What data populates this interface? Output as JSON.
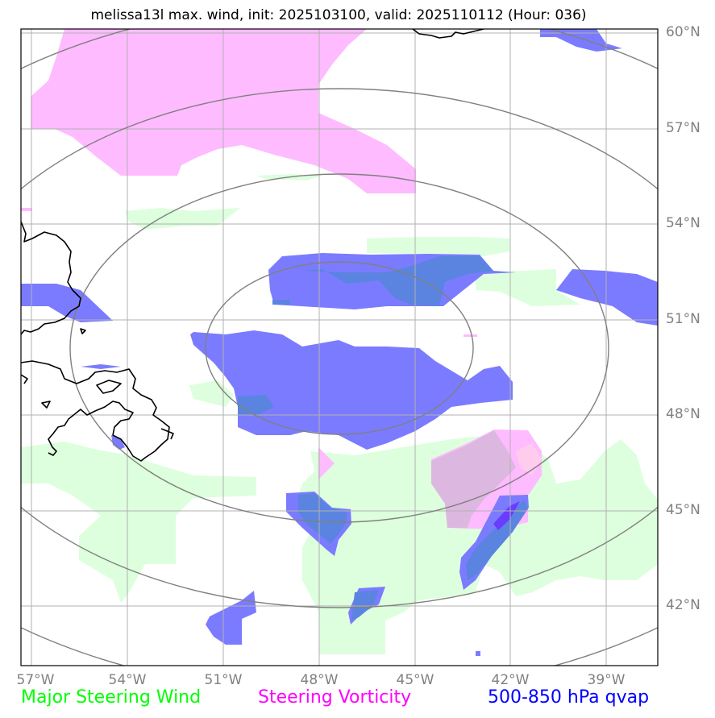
{
  "title": "melissa13l max. wind, init: 2025103100, valid: 2025110112 (Hour: 036)",
  "lat_labels": [
    "60°N",
    "57°N",
    "54°N",
    "51°N",
    "48°N",
    "45°N",
    "42°N"
  ],
  "lon_labels": [
    "57°W",
    "54°W",
    "51°W",
    "48°W",
    "45°W",
    "42°W",
    "39°W"
  ],
  "legend": [
    {
      "label": "Major Steering Wind",
      "color": "#00ff00"
    },
    {
      "label": "Steering Vorticity",
      "color": "#ff00ff"
    },
    {
      "label": "500-850 hPa qvap",
      "color": "#0000ff"
    }
  ],
  "colors": {
    "steering_wind_fill": "#ddffdd",
    "vorticity_fill": "#ffbbff",
    "qvap_fill": "#7b7bff",
    "grid": "#b0b0b0",
    "range_rings": "#808080",
    "coastline": "#000000"
  }
}
